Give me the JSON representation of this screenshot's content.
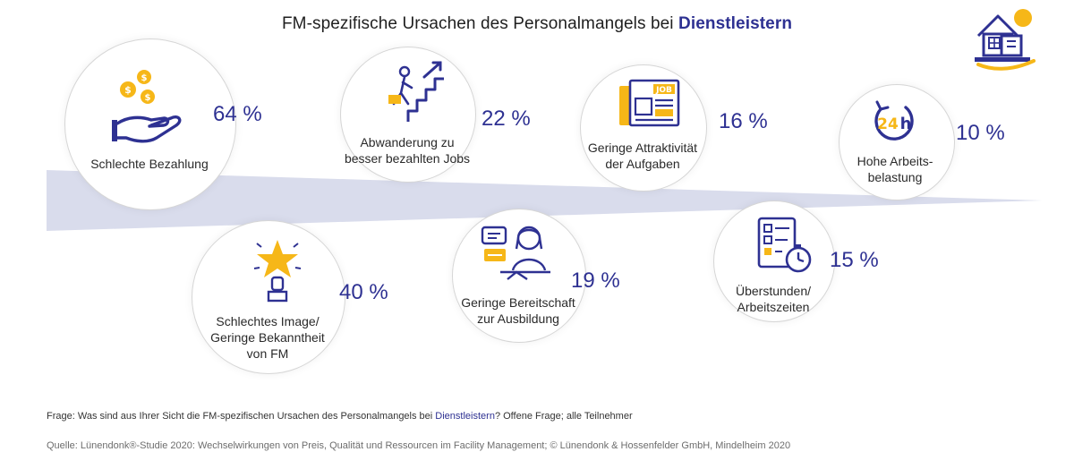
{
  "title": {
    "prefix": "FM-spezifische Ursachen des Personalmangels bei ",
    "highlight": "Dienstleistern"
  },
  "chart_data": {
    "type": "bubble",
    "title": "FM-spezifische Ursachen des Personalmangels bei Dienstleistern",
    "categories": [
      "Schlechte Bezahlung",
      "Schlechtes Image/ Geringe Bekanntheit von FM",
      "Abwanderung zu besser bezahlten Jobs",
      "Geringe Bereitschaft zur Ausbildung",
      "Geringe Attraktivität der Aufgaben",
      "Überstunden/ Arbeitszeiten",
      "Hohe Arbeitsbelastung"
    ],
    "values": [
      64,
      40,
      22,
      19,
      16,
      15,
      10
    ],
    "unit": "%"
  },
  "items": [
    {
      "label": "Schlechte Bezahlung",
      "pct": "64 %",
      "icon": "money-hand-icon"
    },
    {
      "label": "Schlechtes Image/\nGeringe Bekanntheit\nvon FM",
      "pct": "40 %",
      "icon": "star-trophy-icon"
    },
    {
      "label": "Abwanderung zu\nbesser bezahlten Jobs",
      "pct": "22 %",
      "icon": "career-stairs-icon"
    },
    {
      "label": "Geringe Bereitschaft\nzur Ausbildung",
      "pct": "19 %",
      "icon": "learning-person-icon"
    },
    {
      "label": "Geringe Attraktivität\nder Aufgaben",
      "pct": "16 %",
      "icon": "job-newspaper-icon"
    },
    {
      "label": "Überstunden/\nArbeitszeiten",
      "pct": "15 %",
      "icon": "checklist-stopwatch-icon"
    },
    {
      "label": "Hohe Arbeits-\nbelastung",
      "pct": "10 %",
      "icon": "24h-clock-icon"
    }
  ],
  "logo": {
    "icon": "house-hand-sun-icon"
  },
  "footer": {
    "question_prefix": "Frage: Was sind aus Ihrer Sicht die FM-spezifischen Ursachen des Personalmangels bei ",
    "question_highlight": "Dienstleistern",
    "question_suffix": "? Offene Frage; alle Teilnehmer",
    "source": "Quelle: Lünendonk®-Studie 2020: Wechselwirkungen von Preis, Qualität und Ressourcen im Facility Management; © Lünendonk & Hossenfelder GmbH, Mindelheim 2020"
  },
  "colors": {
    "accent": "#2e3192",
    "gold": "#f6b718",
    "band": "#d9dcec",
    "circle_border": "#d6d6d6"
  }
}
